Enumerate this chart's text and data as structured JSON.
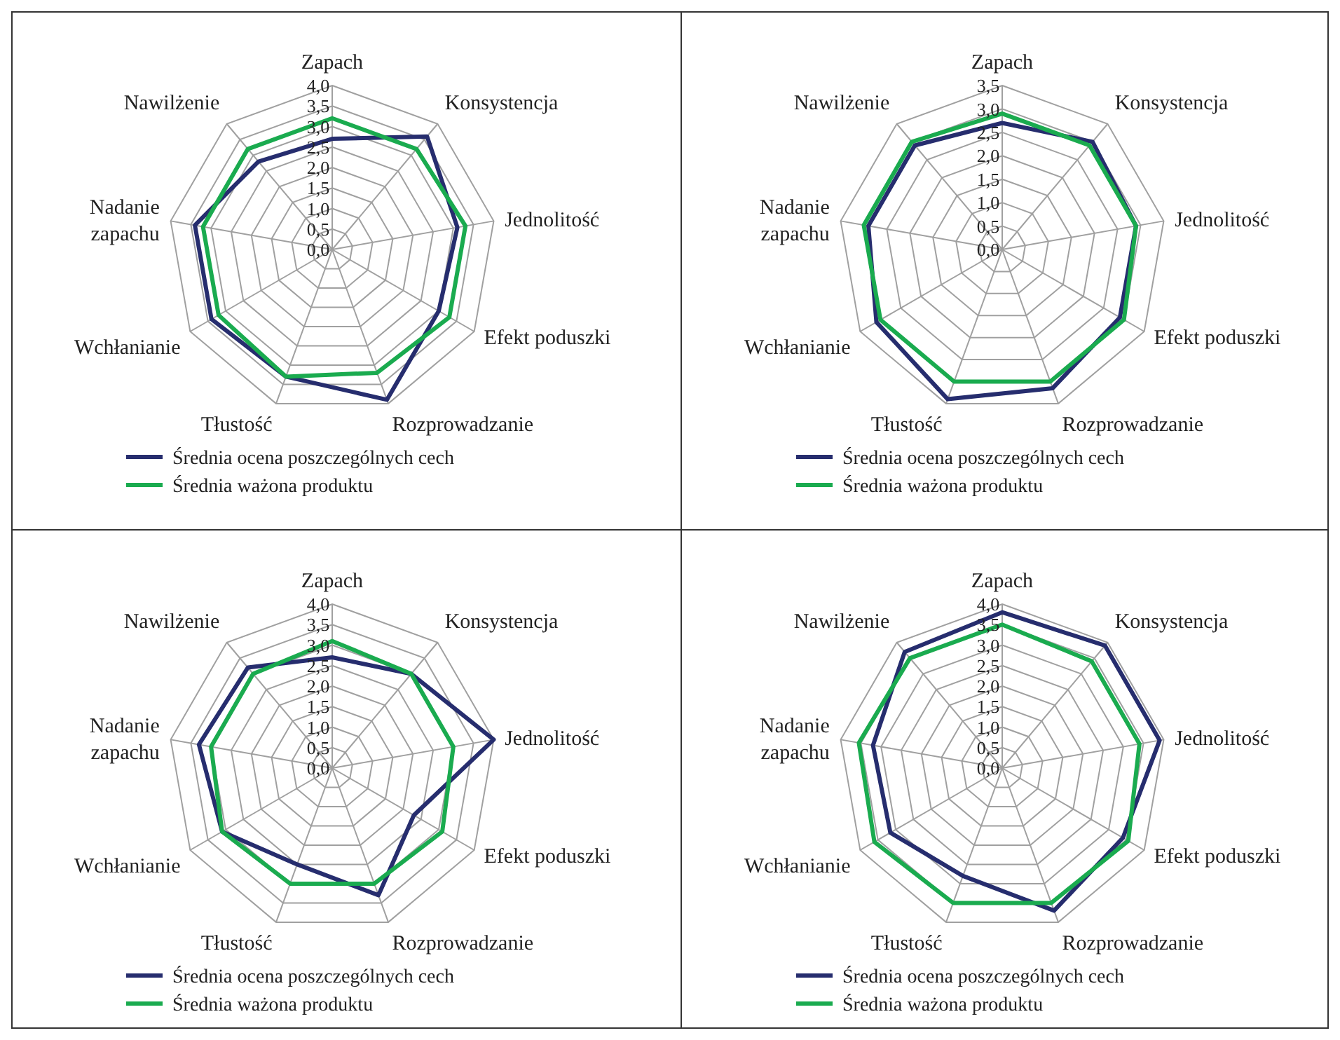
{
  "chart_data": [
    {
      "type": "radar",
      "categories": [
        "Zapach",
        "Konsystencja",
        "Jednolitość",
        "Efekt poduszki",
        "Rozprowadzanie",
        "Tłustość",
        "Wchłanianie",
        "Nadanie zapachu",
        "Nawilżenie"
      ],
      "ylim": [
        0,
        4
      ],
      "yticks": [
        {
          "value": 0,
          "label": "0,0"
        },
        {
          "value": 0.5,
          "label": "0,5"
        },
        {
          "value": 1,
          "label": "1,0"
        },
        {
          "value": 1.5,
          "label": "1,5"
        },
        {
          "value": 2,
          "label": "2,0"
        },
        {
          "value": 2.5,
          "label": "2,5"
        },
        {
          "value": 3,
          "label": "3,0"
        },
        {
          "value": 3.5,
          "label": "3,5"
        },
        {
          "value": 4,
          "label": "4,0"
        }
      ],
      "grid": true,
      "legend": "bottom",
      "series": [
        {
          "name": "Średnia ocena poszczególnych cech",
          "color": "#262d6e",
          "values": [
            2.7,
            3.6,
            3.1,
            3.0,
            3.9,
            3.3,
            3.4,
            3.4,
            2.8
          ]
        },
        {
          "name": "Średnia ważona produktu",
          "color": "#1aab4f",
          "values": [
            3.2,
            3.2,
            3.3,
            3.3,
            3.2,
            3.3,
            3.2,
            3.2,
            3.2
          ]
        }
      ]
    },
    {
      "type": "radar",
      "categories": [
        "Zapach",
        "Konsystencja",
        "Jednolitość",
        "Efekt poduszki",
        "Rozprowadzanie",
        "Tłustość",
        "Wchłanianie",
        "Nadanie zapachu",
        "Nawilżenie"
      ],
      "ylim": [
        0,
        3.5
      ],
      "yticks": [
        {
          "value": 0,
          "label": "0,0"
        },
        {
          "value": 0.5,
          "label": "0,5"
        },
        {
          "value": 1,
          "label": "1,0"
        },
        {
          "value": 1.5,
          "label": "1,5"
        },
        {
          "value": 2,
          "label": "2,0"
        },
        {
          "value": 2.5,
          "label": "2,5"
        },
        {
          "value": 3,
          "label": "3,0"
        },
        {
          "value": 3.5,
          "label": "3,5"
        }
      ],
      "grid": true,
      "legend": "bottom",
      "series": [
        {
          "name": "Średnia ocena poszczególnych cech",
          "color": "#262d6e",
          "values": [
            2.7,
            3.0,
            2.9,
            2.9,
            3.15,
            3.4,
            3.1,
            2.9,
            2.9
          ]
        },
        {
          "name": "Średnia ważona produktu",
          "color": "#1aab4f",
          "values": [
            2.9,
            2.9,
            2.9,
            3.0,
            3.0,
            3.0,
            3.0,
            3.0,
            3.0
          ]
        }
      ]
    },
    {
      "type": "radar",
      "categories": [
        "Zapach",
        "Konsystencja",
        "Jednolitość",
        "Efekt poduszki",
        "Rozprowadzanie",
        "Tłustość",
        "Wchłanianie",
        "Nadanie zapachu",
        "Nawilżenie"
      ],
      "ylim": [
        0,
        4
      ],
      "yticks": [
        {
          "value": 0,
          "label": "0,0"
        },
        {
          "value": 0.5,
          "label": "0,5"
        },
        {
          "value": 1,
          "label": "1,0"
        },
        {
          "value": 1.5,
          "label": "1,5"
        },
        {
          "value": 2,
          "label": "2,0"
        },
        {
          "value": 2.5,
          "label": "2,5"
        },
        {
          "value": 3,
          "label": "3,0"
        },
        {
          "value": 3.5,
          "label": "3,5"
        },
        {
          "value": 4,
          "label": "4,0"
        }
      ],
      "grid": true,
      "legend": "bottom",
      "series": [
        {
          "name": "Średnia ocena poszczególnych cech",
          "color": "#262d6e",
          "values": [
            2.7,
            3.0,
            4.0,
            2.3,
            3.3,
            2.5,
            3.1,
            3.3,
            3.2
          ]
        },
        {
          "name": "Średnia ważona produktu",
          "color": "#1aab4f",
          "values": [
            3.1,
            3.0,
            3.0,
            3.1,
            3.0,
            3.0,
            3.1,
            3.0,
            3.0
          ]
        }
      ]
    },
    {
      "type": "radar",
      "categories": [
        "Zapach",
        "Konsystencja",
        "Jednolitość",
        "Efekt poduszki",
        "Rozprowadzanie",
        "Tłustość",
        "Wchłanianie",
        "Nadanie zapachu",
        "Nawilżenie"
      ],
      "ylim": [
        0,
        4
      ],
      "yticks": [
        {
          "value": 0,
          "label": "0,0"
        },
        {
          "value": 0.5,
          "label": "0,5"
        },
        {
          "value": 1,
          "label": "1,0"
        },
        {
          "value": 1.5,
          "label": "1,5"
        },
        {
          "value": 2,
          "label": "2,0"
        },
        {
          "value": 2.5,
          "label": "2,5"
        },
        {
          "value": 3,
          "label": "3,0"
        },
        {
          "value": 3.5,
          "label": "3,5"
        },
        {
          "value": 4,
          "label": "4,0"
        }
      ],
      "grid": true,
      "legend": "bottom",
      "series": [
        {
          "name": "Średnia ocena poszczególnych cech",
          "color": "#262d6e",
          "values": [
            3.8,
            3.9,
            3.9,
            3.4,
            3.7,
            2.8,
            3.15,
            3.2,
            3.7
          ]
        },
        {
          "name": "Średnia ważona produktu",
          "color": "#1aab4f",
          "values": [
            3.5,
            3.4,
            3.4,
            3.55,
            3.5,
            3.5,
            3.6,
            3.55,
            3.5
          ]
        }
      ]
    }
  ]
}
